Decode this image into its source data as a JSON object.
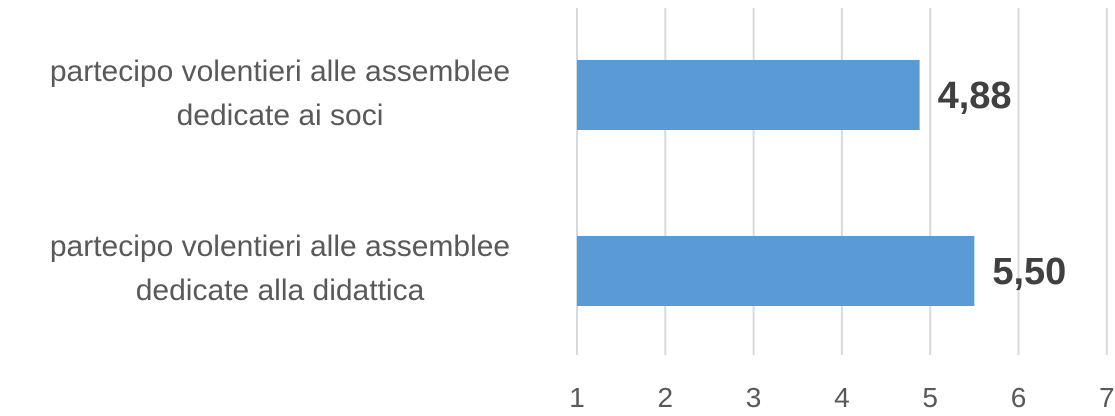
{
  "chart_data": {
    "type": "bar",
    "orientation": "horizontal",
    "categories": [
      "partecipo volentieri alle assemblee\ndedicate ai soci",
      "partecipo volentieri alle assemblee\ndedicate alla didattica"
    ],
    "values": [
      4.88,
      5.5
    ],
    "data_labels": [
      "4,88",
      "5,50"
    ],
    "xlim": [
      1,
      7
    ],
    "xticks": [
      "1",
      "2",
      "3",
      "4",
      "5",
      "6",
      "7"
    ],
    "grid": "vertical",
    "legend": "none",
    "title": "",
    "xlabel": "",
    "ylabel": "",
    "colors": {
      "bar": "#5B9BD5",
      "grid": "#D9D9D9",
      "tick_text": "#595959",
      "category_text": "#595959",
      "data_label_text": "#404040"
    }
  }
}
